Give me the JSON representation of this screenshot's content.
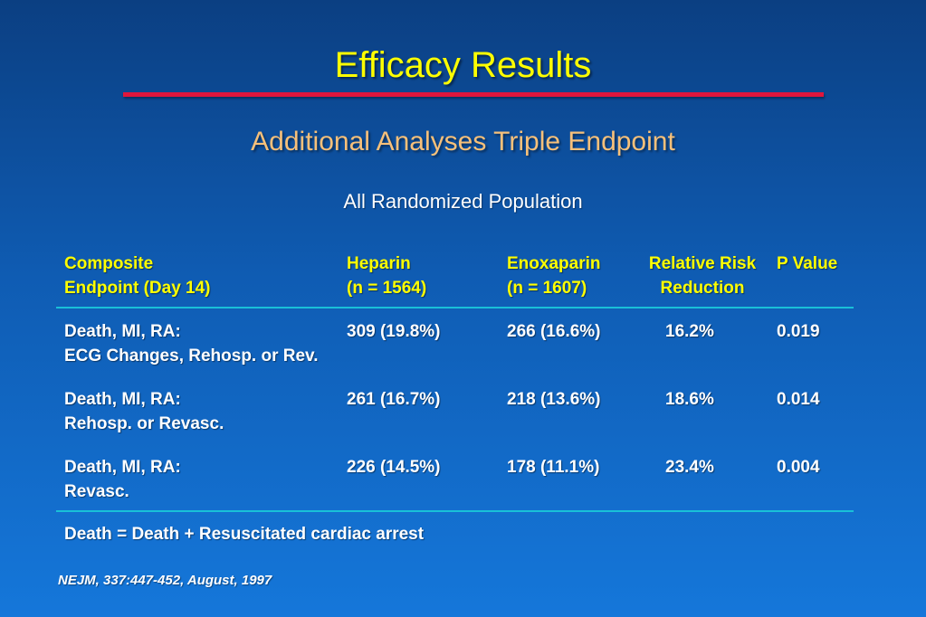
{
  "slide": {
    "title": "Efficacy Results",
    "subtitle": "Additional Analyses Triple Endpoint",
    "population": "All Randomized Population"
  },
  "colors": {
    "title": "#ffff00",
    "title_rule": "#e0163c",
    "subtitle": "#f6c07a",
    "header_text": "#ffff00",
    "table_rule": "#19c0d8"
  },
  "table": {
    "headers": {
      "composite_line1": "Composite",
      "composite_line2": "Endpoint (Day 14)",
      "heparin_line1": "Heparin",
      "heparin_line2": "(n = 1564)",
      "enox_line1": "Enoxaparin",
      "enox_line2": "(n = 1607)",
      "rrr_line1": "Relative Risk",
      "rrr_line2": "Reduction",
      "p_line1": "P Value"
    },
    "rows": [
      {
        "endpoint_line1": "Death, MI, RA:",
        "endpoint_line2": "ECG Changes, Rehosp. or  Rev.",
        "heparin": "309 (19.8%)",
        "enoxaparin": "266 (16.6%)",
        "rrr": "16.2%",
        "p": "0.019"
      },
      {
        "endpoint_line1": "Death, MI, RA:",
        "endpoint_line2": "Rehosp. or Revasc.",
        "heparin": "261 (16.7%)",
        "enoxaparin": "218 (13.6%)",
        "rrr": "18.6%",
        "p": "0.014"
      },
      {
        "endpoint_line1": "Death, MI, RA:",
        "endpoint_line2": "Revasc.",
        "heparin": "226 (14.5%)",
        "enoxaparin": "178 (11.1%)",
        "rrr": "23.4%",
        "p": "0.004"
      }
    ],
    "footnote": "Death = Death + Resuscitated cardiac arrest"
  },
  "citation": "NEJM, 337:447-452, August, 1997"
}
